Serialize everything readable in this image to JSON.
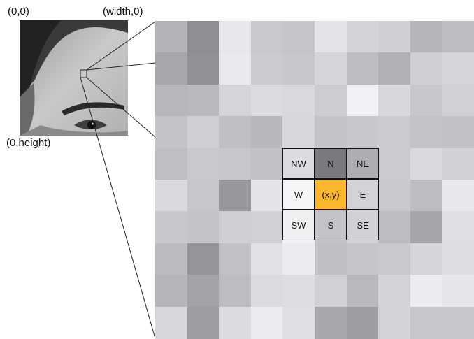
{
  "labels": {
    "top_left": "(0,0)",
    "top_right": "(width,0)",
    "bottom_left": "(0,height)"
  },
  "neighborhood": [
    {
      "label": "NW",
      "color": "#dcdbe0"
    },
    {
      "label": "N",
      "color": "#7b797e"
    },
    {
      "label": "NE",
      "color": "#aeadb2"
    },
    {
      "label": "W",
      "color": "#f6f6f8"
    },
    {
      "label": "(x,y)",
      "color": "#fbb62b"
    },
    {
      "label": "E",
      "color": "#d3d2d6"
    },
    {
      "label": "SW",
      "color": "#f0eff2"
    },
    {
      "label": "S",
      "color": "#c3c2c7"
    },
    {
      "label": "SE",
      "color": "#d2d1d5"
    }
  ],
  "pixel_grid": [
    [
      "#b4b3b8",
      "#8f8e93",
      "#e7e6ea",
      "#c9c8cd",
      "#c5c4c9",
      "#e3e2e7",
      "#d4d3d8",
      "#d0cfd4",
      "#b5b4b9",
      "#bdbcc1"
    ],
    [
      "#a7a6ab",
      "#909095",
      "#e9e8ec",
      "#cbcacf",
      "#c8c7cc",
      "#d6d5da",
      "#bebdc2",
      "#b2b1b6",
      "#cfced3",
      "#d5d4d9"
    ],
    [
      "#b7b6bb",
      "#b9b8bd",
      "#d5d4d9",
      "#dcdbe0",
      "#d9d8dd",
      "#cdccd1",
      "#f1f0f4",
      "#d8d7de",
      "#c8c7cc",
      "#d1d0d5"
    ],
    [
      "#c4c3c8",
      "#d0cfd4",
      "#bfbec3",
      "#b8b7bc",
      "#d7d6db",
      "#c4c3c8",
      "#c8c7cc",
      "#cbcacf",
      "#c3c2c7",
      "#c1c0c5"
    ],
    [
      "#bfbec3",
      "#c9c8cd",
      "#c7c6cb",
      "#c2c1c6",
      "#dcdbe0",
      "#7b797e",
      "#aeadb2",
      "#cbcacf",
      "#d9d8dd",
      "#d2d1d6"
    ],
    [
      "#dad9de",
      "#c7c6cb",
      "#98979c",
      "#e4e3e8",
      "#f6f6f8",
      "#fbb62b",
      "#d3d2d6",
      "#c9c8cd",
      "#bebdc2",
      "#e8e7eb"
    ],
    [
      "#c8c7cc",
      "#c4c3c8",
      "#d0cfd4",
      "#d1d0d5",
      "#f0eff2",
      "#c3c2c7",
      "#d2d1d5",
      "#bdbcc1",
      "#a6a5aa",
      "#dfdee3"
    ],
    [
      "#bcbbc0",
      "#959499",
      "#c2c1c6",
      "#e1e0e5",
      "#ebeaee",
      "#c0bfc4",
      "#c6c5ca",
      "#c9c8cd",
      "#d5d4d9",
      "#dedde2"
    ],
    [
      "#b6b5ba",
      "#a3a2a7",
      "#bdbcc1",
      "#dbdade",
      "#dddce1",
      "#d1d0d5",
      "#b9b8bd",
      "#d3d2d7",
      "#ecebef",
      "#e6e5ea"
    ],
    [
      "#d7d6db",
      "#9d9ca1",
      "#dbdadf",
      "#ebeaee",
      "#e0dfe4",
      "#a8a7ac",
      "#9e9da2",
      "#d4d3d8",
      "#c7c6cb",
      "#c8c7cc"
    ]
  ]
}
